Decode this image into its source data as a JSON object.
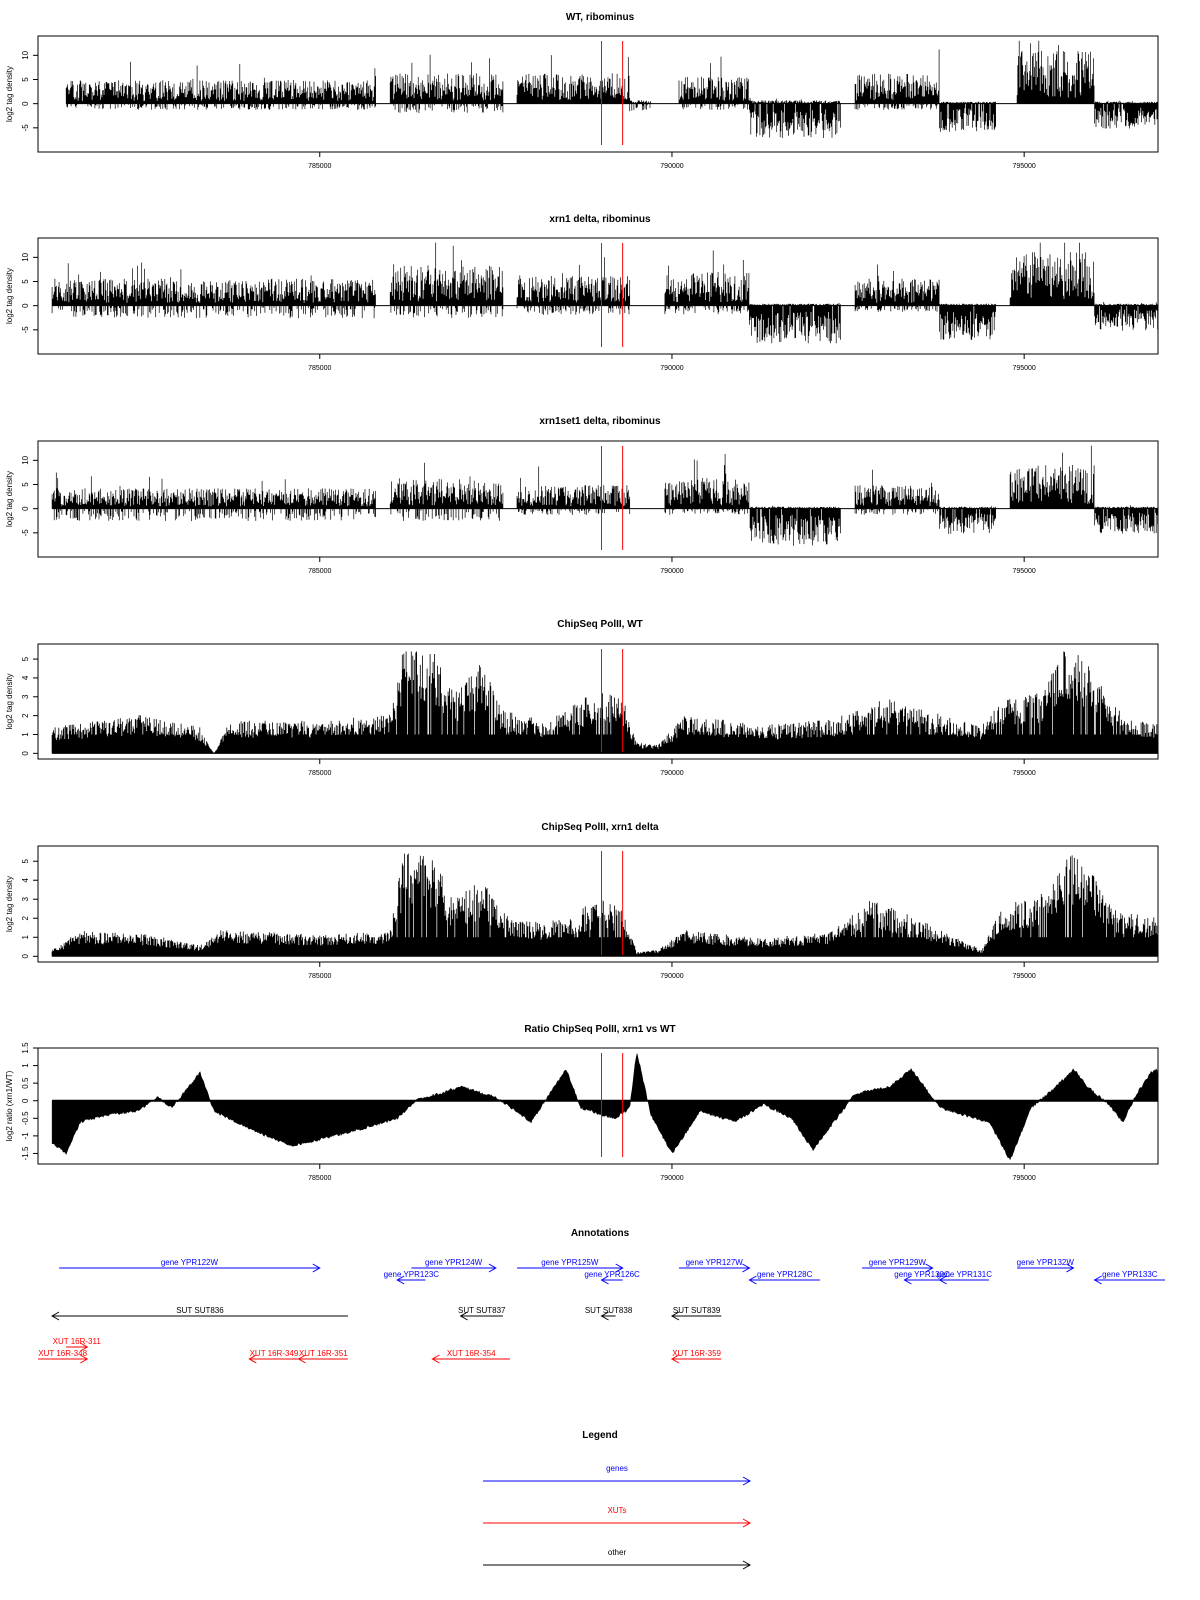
{
  "chart_data": [
    {
      "type": "bar",
      "title": "WT, ribominus",
      "ylabel": "log2 tag density",
      "xlim": [
        781000,
        796900
      ],
      "ylim": [
        -10,
        14
      ],
      "yticks": [
        "-5",
        "0",
        "5",
        "10"
      ],
      "xticks": [
        "785000",
        "790000",
        "795000"
      ],
      "markers": [
        789000,
        789300
      ],
      "marker_color": "#ff0000",
      "segments": [
        {
          "range": [
            781400,
            785800
          ],
          "pos": 3.5,
          "neg": -1.0
        },
        {
          "range": [
            786000,
            787600
          ],
          "pos": 4.5,
          "neg": -1.5
        },
        {
          "range": [
            787800,
            789400
          ],
          "pos": 4.5,
          "neg": 0
        },
        {
          "range": [
            789400,
            789700
          ],
          "pos": 0.5,
          "neg": -1.5
        },
        {
          "range": [
            790100,
            791100
          ],
          "pos": 4.0,
          "neg": -1.0
        },
        {
          "range": [
            791100,
            792400
          ],
          "pos": 0.5,
          "neg": -5.5
        },
        {
          "range": [
            792600,
            793800
          ],
          "pos": 4.5,
          "neg": -1.0
        },
        {
          "range": [
            793800,
            794600
          ],
          "pos": 0.3,
          "neg": -4.5
        },
        {
          "range": [
            794900,
            796000
          ],
          "pos": 8.0,
          "neg": 0
        },
        {
          "range": [
            796000,
            796900
          ],
          "pos": 0.3,
          "neg": -4.0
        }
      ]
    },
    {
      "type": "bar",
      "title": "xrn1 delta, ribominus",
      "ylabel": "log2 tag density",
      "xlim": [
        781000,
        796900
      ],
      "ylim": [
        -10,
        14
      ],
      "yticks": [
        "-5",
        "0",
        "5",
        "10"
      ],
      "xticks": [
        "785000",
        "790000",
        "795000"
      ],
      "markers": [
        789000,
        789300
      ],
      "marker_color": "#ff0000",
      "segments": [
        {
          "range": [
            781200,
            785800
          ],
          "pos": 4.0,
          "neg": -2.0
        },
        {
          "range": [
            786000,
            787600
          ],
          "pos": 6.0,
          "neg": -2.0
        },
        {
          "range": [
            787800,
            789400
          ],
          "pos": 4.5,
          "neg": -1.5
        },
        {
          "range": [
            789900,
            791100
          ],
          "pos": 5.0,
          "neg": -1.5
        },
        {
          "range": [
            791100,
            792400
          ],
          "pos": 0.3,
          "neg": -6.0
        },
        {
          "range": [
            792600,
            793800
          ],
          "pos": 4.0,
          "neg": -1.0
        },
        {
          "range": [
            793800,
            794600
          ],
          "pos": 0.3,
          "neg": -5.5
        },
        {
          "range": [
            794800,
            796000
          ],
          "pos": 8.0,
          "neg": 0
        },
        {
          "range": [
            796000,
            796900
          ],
          "pos": 0.3,
          "neg": -4.0
        }
      ]
    },
    {
      "type": "bar",
      "title": "xrn1set1 delta, ribominus",
      "ylabel": "log2 tag density",
      "xlim": [
        781000,
        796900
      ],
      "ylim": [
        -10,
        14
      ],
      "yticks": [
        "-5",
        "0",
        "5",
        "10"
      ],
      "xticks": [
        "785000",
        "790000",
        "795000"
      ],
      "markers": [
        789000,
        789300
      ],
      "marker_color": "#ff0000",
      "segments": [
        {
          "range": [
            781200,
            785800
          ],
          "pos": 3.0,
          "neg": -2.0
        },
        {
          "range": [
            786000,
            787600
          ],
          "pos": 4.5,
          "neg": -2.0
        },
        {
          "range": [
            787800,
            789400
          ],
          "pos": 3.5,
          "neg": -1.0
        },
        {
          "range": [
            789900,
            791100
          ],
          "pos": 4.5,
          "neg": -1.0
        },
        {
          "range": [
            791100,
            792400
          ],
          "pos": 0.3,
          "neg": -6.0
        },
        {
          "range": [
            792600,
            793800
          ],
          "pos": 3.5,
          "neg": -1.0
        },
        {
          "range": [
            793800,
            794600
          ],
          "pos": 0.3,
          "neg": -4.0
        },
        {
          "range": [
            794800,
            796000
          ],
          "pos": 6.5,
          "neg": 0
        },
        {
          "range": [
            796000,
            796900
          ],
          "pos": 0.3,
          "neg": -4.0
        }
      ]
    },
    {
      "type": "bar",
      "title": "ChipSeq PolII, WT",
      "ylabel": "log2 tag density",
      "xlim": [
        781000,
        796900
      ],
      "ylim": [
        -0.3,
        5.8
      ],
      "yticks": [
        "0",
        "1",
        "2",
        "3",
        "4",
        "5"
      ],
      "xticks": [
        "785000",
        "790000",
        "795000"
      ],
      "markers": [
        789000,
        789300
      ],
      "marker_color": "#ff0000",
      "profile": [
        [
          781200,
          1.2
        ],
        [
          782500,
          1.8
        ],
        [
          783300,
          1.2
        ],
        [
          783500,
          0
        ],
        [
          783700,
          1.5
        ],
        [
          785000,
          1.5
        ],
        [
          786000,
          1.8
        ],
        [
          786200,
          5.2
        ],
        [
          786600,
          4.8
        ],
        [
          786900,
          2.8
        ],
        [
          787300,
          4.2
        ],
        [
          787600,
          2.0
        ],
        [
          788200,
          1.5
        ],
        [
          789000,
          3.0
        ],
        [
          789300,
          2.6
        ],
        [
          789500,
          0.5
        ],
        [
          789800,
          0.4
        ],
        [
          790200,
          1.8
        ],
        [
          791300,
          1.3
        ],
        [
          792300,
          1.6
        ],
        [
          793100,
          2.6
        ],
        [
          793600,
          2.0
        ],
        [
          794400,
          1.3
        ],
        [
          794700,
          2.5
        ],
        [
          795200,
          2.8
        ],
        [
          795600,
          5.0
        ],
        [
          795900,
          4.2
        ],
        [
          796200,
          2.6
        ],
        [
          796500,
          1.5
        ],
        [
          796900,
          1.5
        ]
      ]
    },
    {
      "type": "bar",
      "title": "ChipSeq PolII, xrn1 delta",
      "ylabel": "log2 tag density",
      "xlim": [
        781000,
        796900
      ],
      "ylim": [
        -0.3,
        5.8
      ],
      "yticks": [
        "0",
        "1",
        "2",
        "3",
        "4",
        "5"
      ],
      "xticks": [
        "785000",
        "790000",
        "795000"
      ],
      "markers": [
        789000,
        789300
      ],
      "marker_color": "#ff0000",
      "profile": [
        [
          781200,
          0.3
        ],
        [
          781600,
          1.2
        ],
        [
          782600,
          1.0
        ],
        [
          783300,
          0.5
        ],
        [
          783600,
          1.2
        ],
        [
          785000,
          1.0
        ],
        [
          786000,
          1.2
        ],
        [
          786200,
          5.0
        ],
        [
          786600,
          4.6
        ],
        [
          786900,
          2.6
        ],
        [
          787300,
          3.5
        ],
        [
          787600,
          2.0
        ],
        [
          788200,
          1.5
        ],
        [
          789000,
          2.6
        ],
        [
          789300,
          2.2
        ],
        [
          789500,
          0.2
        ],
        [
          789800,
          0.3
        ],
        [
          790200,
          1.2
        ],
        [
          791300,
          0.8
        ],
        [
          792300,
          1.2
        ],
        [
          792800,
          2.6
        ],
        [
          793300,
          2.0
        ],
        [
          794400,
          0.3
        ],
        [
          794700,
          2.4
        ],
        [
          795200,
          2.8
        ],
        [
          795600,
          4.8
        ],
        [
          795900,
          4.2
        ],
        [
          796200,
          2.4
        ],
        [
          796500,
          2.0
        ],
        [
          796900,
          1.8
        ]
      ]
    },
    {
      "type": "area",
      "title": "Ratio ChipSeq PolII, xrn1 vs WT",
      "ylabel": "log2 ratio (xrn1/WT)",
      "xlim": [
        781000,
        796900
      ],
      "ylim": [
        -1.8,
        1.5
      ],
      "yticks": [
        "-1.5",
        "-1",
        "-0.5",
        "0",
        "0.5",
        "1",
        "1.5"
      ],
      "xticks": [
        "785000",
        "790000",
        "795000"
      ],
      "baseline": 0,
      "markers": [
        789000,
        789300
      ],
      "marker_color": "#ff0000",
      "profile": [
        [
          781200,
          -1.2
        ],
        [
          781400,
          -1.5
        ],
        [
          781600,
          -0.6
        ],
        [
          782000,
          -0.4
        ],
        [
          782400,
          -0.3
        ],
        [
          782700,
          0.1
        ],
        [
          782900,
          -0.2
        ],
        [
          783300,
          0.8
        ],
        [
          783500,
          -0.3
        ],
        [
          784000,
          -0.8
        ],
        [
          784600,
          -1.3
        ],
        [
          785200,
          -1.0
        ],
        [
          785600,
          -0.8
        ],
        [
          786100,
          -0.5
        ],
        [
          786400,
          0.05
        ],
        [
          786700,
          0.2
        ],
        [
          787000,
          0.4
        ],
        [
          787500,
          0.1
        ],
        [
          788000,
          -0.6
        ],
        [
          788300,
          0.3
        ],
        [
          788500,
          0.9
        ],
        [
          788700,
          -0.2
        ],
        [
          789000,
          -0.4
        ],
        [
          789200,
          -0.5
        ],
        [
          789400,
          -0.2
        ],
        [
          789500,
          1.4
        ],
        [
          789700,
          -0.4
        ],
        [
          790000,
          -1.5
        ],
        [
          790400,
          -0.3
        ],
        [
          790900,
          -0.6
        ],
        [
          791300,
          -0.1
        ],
        [
          791700,
          -0.5
        ],
        [
          792000,
          -1.4
        ],
        [
          792300,
          -0.6
        ],
        [
          792600,
          0.2
        ],
        [
          793100,
          0.4
        ],
        [
          793400,
          0.9
        ],
        [
          793800,
          -0.2
        ],
        [
          794300,
          -0.5
        ],
        [
          794500,
          -0.6
        ],
        [
          794800,
          -1.7
        ],
        [
          795100,
          -0.2
        ],
        [
          795400,
          0.3
        ],
        [
          795700,
          0.9
        ],
        [
          795900,
          0.4
        ],
        [
          796200,
          -0.1
        ],
        [
          796400,
          -0.6
        ],
        [
          796600,
          0.2
        ],
        [
          796800,
          0.8
        ],
        [
          796900,
          0.9
        ]
      ]
    },
    {
      "type": "other",
      "title": "Annotations",
      "xlim": [
        781000,
        796900
      ],
      "rows": [
        {
          "color": "#0000ff",
          "features": [
            {
              "label": "gene YPR122W",
              "start": 781300,
              "end": 785000,
              "strand": "+",
              "row": 0
            },
            {
              "label": "gene YPR123C",
              "start": 786100,
              "end": 786500,
              "strand": "-",
              "row": 1
            },
            {
              "label": "gene YPR124W",
              "start": 786300,
              "end": 787500,
              "strand": "+",
              "row": 0
            },
            {
              "label": "gene YPR125W",
              "start": 787800,
              "end": 789300,
              "strand": "+",
              "row": 0
            },
            {
              "label": "gene YPR126C",
              "start": 789000,
              "end": 789300,
              "strand": "-",
              "row": 1
            },
            {
              "label": "gene YPR127W",
              "start": 790100,
              "end": 791100,
              "strand": "+",
              "row": 0
            },
            {
              "label": "gene YPR128C",
              "start": 791100,
              "end": 792100,
              "strand": "-",
              "row": 1
            },
            {
              "label": "gene YPR129W",
              "start": 792700,
              "end": 793700,
              "strand": "+",
              "row": 0
            },
            {
              "label": "gene YPR130C",
              "start": 793300,
              "end": 793800,
              "strand": "-",
              "row": 1
            },
            {
              "label": "gene YPR131C",
              "start": 793800,
              "end": 794500,
              "strand": "-",
              "row": 1
            },
            {
              "label": "gene YPR132W",
              "start": 794900,
              "end": 795700,
              "strand": "+",
              "row": 0
            },
            {
              "label": "gene YPR133C",
              "start": 796000,
              "end": 797000,
              "strand": "-",
              "row": 1
            }
          ]
        },
        {
          "color": "#000000",
          "features": [
            {
              "label": "SUT SUT836",
              "start": 781200,
              "end": 785400,
              "strand": "-",
              "row": 0
            },
            {
              "label": "SUT SUT837",
              "start": 787000,
              "end": 787600,
              "strand": "-",
              "row": 0
            },
            {
              "label": "SUT SUT838",
              "start": 789000,
              "end": 789200,
              "strand": "-",
              "row": 0
            },
            {
              "label": "SUT SUT839",
              "start": 790000,
              "end": 790700,
              "strand": "-",
              "row": 0
            }
          ]
        },
        {
          "color": "#ff0000",
          "features": [
            {
              "label": "XUT 16R-348",
              "start": 781000,
              "end": 781700,
              "strand": "+",
              "row": 1
            },
            {
              "label": "XUT 16R-311",
              "start": 781400,
              "end": 781700,
              "strand": "+",
              "row": 0
            },
            {
              "label": "XUT 16R-349",
              "start": 784000,
              "end": 784700,
              "strand": "-",
              "row": 1
            },
            {
              "label": "XUT 16R-351",
              "start": 784700,
              "end": 785400,
              "strand": "-",
              "row": 1
            },
            {
              "label": "XUT 16R-354",
              "start": 786600,
              "end": 787700,
              "strand": "-",
              "row": 1
            },
            {
              "label": "XUT 16R-359",
              "start": 790000,
              "end": 790700,
              "strand": "-",
              "row": 1
            }
          ]
        }
      ]
    },
    {
      "type": "other",
      "title": "Legend",
      "entries": [
        {
          "label": "genes",
          "color": "#0000ff"
        },
        {
          "label": "XUTs",
          "color": "#ff0000"
        },
        {
          "label": "other",
          "color": "#000000"
        }
      ]
    }
  ]
}
